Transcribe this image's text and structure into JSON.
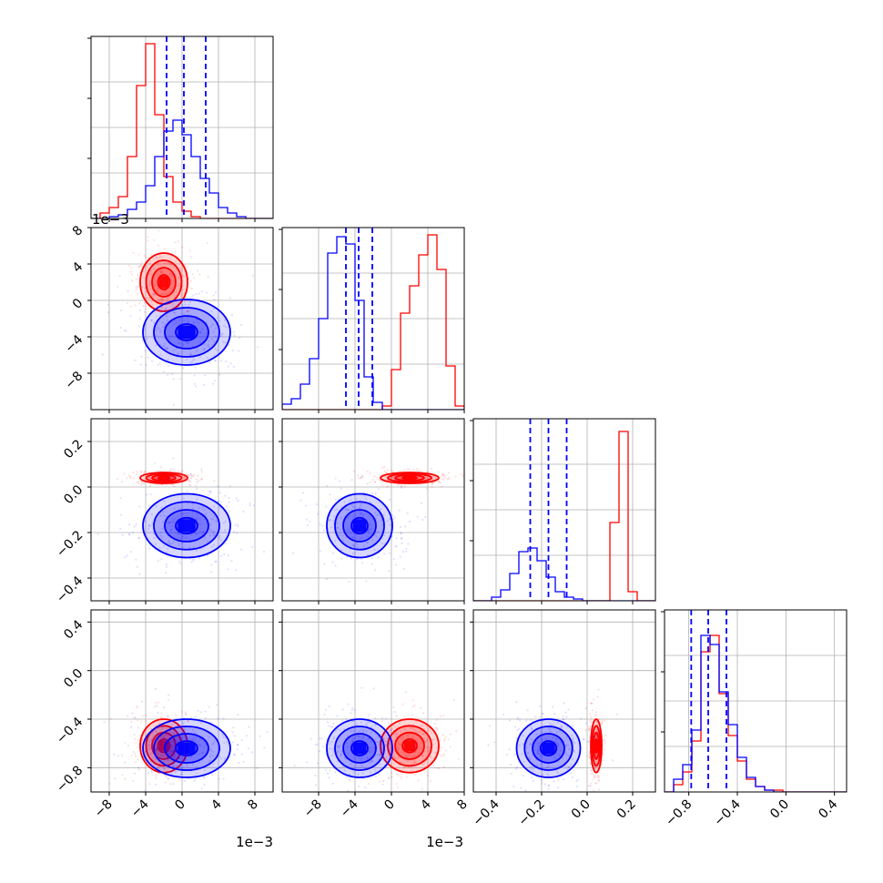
{
  "figure": {
    "type": "corner_plot",
    "colors": {
      "series_a": "#ff0000",
      "series_b": "#0000ff",
      "grid": "#b0b0b0"
    },
    "offset_label": "1e−3"
  },
  "chart_data": {
    "type": "corner",
    "parameters": [
      {
        "index": 0,
        "range": [
          -10,
          10
        ],
        "unit_scale": 0.001,
        "ticks": [
          -8,
          -4,
          0,
          4,
          8
        ],
        "tick_labels": [
          "−8",
          "−4",
          "0",
          "4",
          "8"
        ]
      },
      {
        "index": 1,
        "range": [
          -12,
          8
        ],
        "unit_scale": 0.001,
        "ticks": [
          -8,
          -4,
          0,
          4,
          8
        ],
        "tick_labels": [
          "−8",
          "−4",
          "0",
          "4",
          "8"
        ]
      },
      {
        "index": 2,
        "range": [
          -0.5,
          0.3
        ],
        "ticks": [
          -0.4,
          -0.2,
          0.0,
          0.2
        ],
        "tick_labels": [
          "−0.4",
          "−0.2",
          "0.0",
          "0.2"
        ]
      },
      {
        "index": 3,
        "range": [
          -1.0,
          0.5
        ],
        "ticks": [
          -0.8,
          -0.4,
          0.0,
          0.4
        ],
        "tick_labels": [
          "−0.8",
          "−0.4",
          "0.0",
          "0.4"
        ]
      }
    ],
    "series": [
      {
        "color": "#ff0000",
        "mean": [
          -2.0,
          2.0,
          0.04,
          -0.62
        ],
        "sd": [
          1.3,
          1.6,
          0.012,
          0.11
        ],
        "hist": [
          [
            0,
            0.03,
            0.06,
            0.12,
            0.34,
            0.73,
            0.96,
            0.57,
            0.23,
            0.09,
            0.04,
            0.01,
            0,
            0,
            0,
            0,
            0,
            0,
            0,
            0
          ],
          [
            0,
            0,
            0,
            0,
            0,
            0,
            0,
            0,
            0,
            0,
            0,
            0.02,
            0.22,
            0.53,
            0.68,
            0.85,
            0.96,
            0.77,
            0.24,
            0.02
          ],
          [
            0,
            0,
            0,
            0,
            0,
            0,
            0,
            0,
            0,
            0,
            0,
            0,
            0,
            0,
            0,
            0.43,
            0.93,
            0.05,
            0,
            0
          ],
          [
            0,
            0.04,
            0.11,
            0.28,
            0.77,
            0.86,
            0.54,
            0.31,
            0.17,
            0.07,
            0.03,
            0.01,
            0.01,
            0,
            0,
            0,
            0,
            0,
            0,
            0
          ]
        ]
      },
      {
        "color": "#0000ff",
        "mean": [
          0.5,
          -3.5,
          -0.17,
          -0.64
        ],
        "sd": [
          2.4,
          1.8,
          0.07,
          0.12
        ],
        "quantiles": [
          [
            -1.7,
            0.2,
            2.6
          ],
          [
            -5.0,
            -3.6,
            -2.1
          ],
          [
            -0.25,
            -0.17,
            -0.09
          ],
          [
            -0.78,
            -0.64,
            -0.49
          ]
        ],
        "hist": [
          [
            0,
            0,
            0.01,
            0.02,
            0.05,
            0.09,
            0.18,
            0.34,
            0.48,
            0.54,
            0.46,
            0.34,
            0.22,
            0.14,
            0.06,
            0.03,
            0.01,
            0,
            0,
            0
          ],
          [
            0.03,
            0.06,
            0.14,
            0.28,
            0.5,
            0.86,
            0.95,
            0.91,
            0.6,
            0.18,
            0.04,
            0,
            0,
            0,
            0,
            0,
            0,
            0,
            0,
            0
          ],
          [
            0,
            0,
            0.02,
            0.06,
            0.15,
            0.27,
            0.29,
            0.22,
            0.13,
            0.05,
            0.02,
            0.01,
            0,
            0,
            0,
            0,
            0,
            0,
            0,
            0
          ],
          [
            0,
            0.07,
            0.15,
            0.34,
            0.86,
            0.81,
            0.55,
            0.37,
            0.19,
            0.08,
            0.03,
            0.01,
            0,
            0,
            0,
            0,
            0,
            0,
            0,
            0
          ]
        ]
      }
    ],
    "grid": true
  }
}
